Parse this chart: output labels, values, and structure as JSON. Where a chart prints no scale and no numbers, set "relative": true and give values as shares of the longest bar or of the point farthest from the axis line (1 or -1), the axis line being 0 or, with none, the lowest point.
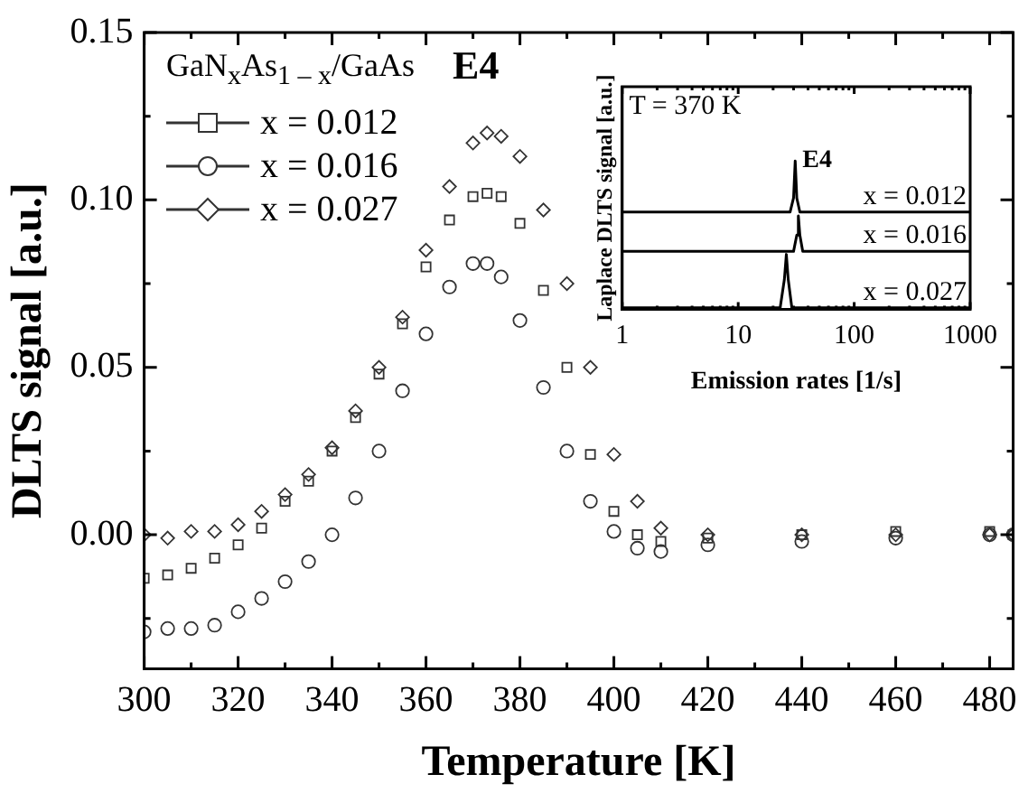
{
  "chart_data": [
    {
      "type": "scatter",
      "xlabel": "Temperature [K]",
      "ylabel": "DLTS signal [a.u.]",
      "legend_title": "GaN$_{x}$As$_{1 – x}$/GaAs",
      "legend": "top left",
      "grid": false,
      "x": [
        300,
        305,
        310,
        315,
        320,
        325,
        330,
        335,
        340,
        345,
        350,
        355,
        360,
        365,
        370,
        373,
        376,
        380,
        385,
        390,
        395,
        400,
        405,
        410,
        420,
        440,
        460,
        480,
        485
      ],
      "series": [
        {
          "name": "x = 0.012",
          "color": "#333333",
          "marker": "square",
          "values": [
            -0.013,
            -0.012,
            -0.01,
            -0.007,
            -0.003,
            0.002,
            0.01,
            0.016,
            0.025,
            0.035,
            0.048,
            0.063,
            0.08,
            0.094,
            0.101,
            0.102,
            0.101,
            0.093,
            0.073,
            0.05,
            0.024,
            0.007,
            0,
            -0.002,
            -0.001,
            0,
            0.001,
            0.001,
            0
          ]
        },
        {
          "name": "x = 0.016",
          "color": "#333333",
          "marker": "circle",
          "values": [
            -0.029,
            -0.028,
            -0.028,
            -0.027,
            -0.023,
            -0.019,
            -0.014,
            -0.008,
            0,
            0.011,
            0.025,
            0.043,
            0.06,
            0.074,
            0.081,
            0.081,
            0.077,
            0.064,
            0.044,
            0.025,
            0.01,
            0.001,
            -0.004,
            -0.005,
            -0.003,
            -0.002,
            -0.001,
            0,
            0
          ]
        },
        {
          "name": "x = 0.027",
          "color": "#333333",
          "marker": "diamond",
          "values": [
            0,
            -0.001,
            0.001,
            0.001,
            0.003,
            0.007,
            0.012,
            0.018,
            0.026,
            0.037,
            0.05,
            0.065,
            0.085,
            0.104,
            0.117,
            0.12,
            0.119,
            0.113,
            0.097,
            0.075,
            0.05,
            0.024,
            0.01,
            0.002,
            0,
            0,
            0,
            0,
            0
          ]
        }
      ],
      "xlim": [
        300,
        485
      ],
      "xticks": [
        300,
        {
          "value": 310,
          "label": null
        },
        320,
        {
          "value": 330,
          "label": null
        },
        340,
        {
          "value": 350,
          "label": null
        },
        360,
        {
          "value": 370,
          "label": null
        },
        380,
        {
          "value": 390,
          "label": null
        },
        400,
        {
          "value": 410,
          "label": null
        },
        420,
        {
          "value": 430,
          "label": null
        },
        440,
        {
          "value": 450,
          "label": null
        },
        460,
        {
          "value": 470,
          "label": null
        },
        480
      ],
      "ylim": [
        -0.04,
        0.15
      ],
      "yticks": [
        {
          "value": -0.025,
          "label": null
        },
        {
          "value": 0,
          "label": "0.00"
        },
        {
          "value": 0.025,
          "label": null
        },
        0.05,
        {
          "value": 0.075,
          "label": null
        },
        {
          "value": 0.1,
          "label": "0.10"
        },
        {
          "value": 0.125,
          "label": null
        },
        0.15
      ],
      "annotations": [
        "E4"
      ]
    },
    {
      "type": "line",
      "xlabel": "Emission rates [1/s]",
      "ylabel": "Laplace DLTS signal [a.u.]",
      "relative": true,
      "log": "x",
      "grid": false,
      "legend": false,
      "marker": "none",
      "tick_labels": "x",
      "series": [
        {
          "name": "x = 0.012",
          "color": "#000000",
          "x": [
            1,
            28,
            30,
            31,
            32,
            34,
            1000
          ],
          "values": [
            0.655,
            0.655,
            0.75,
            1,
            0.75,
            0.655,
            0.655
          ]
        },
        {
          "name": "x = 0.016",
          "color": "#000000",
          "x": [
            1,
            30,
            32,
            33,
            34,
            36,
            1000
          ],
          "values": [
            0.39,
            0.39,
            0.5,
            0.63,
            0.5,
            0.39,
            0.39
          ]
        },
        {
          "name": "x = 0.027",
          "color": "#000000",
          "x": [
            1,
            23,
            25,
            26,
            27,
            29,
            1000
          ],
          "values": [
            0.01,
            0.01,
            0.2,
            0.37,
            0.2,
            0.01,
            0.01
          ]
        }
      ],
      "xlim": [
        1,
        1000
      ],
      "xticks": [
        1,
        {
          "value": 2,
          "label": null
        },
        {
          "value": 3,
          "label": null
        },
        {
          "value": 4,
          "label": null
        },
        {
          "value": 5,
          "label": null
        },
        {
          "value": 6,
          "label": null
        },
        {
          "value": 7,
          "label": null
        },
        {
          "value": 8,
          "label": null
        },
        {
          "value": 9,
          "label": null
        },
        10,
        {
          "value": 20,
          "label": null
        },
        {
          "value": 30,
          "label": null
        },
        {
          "value": 40,
          "label": null
        },
        {
          "value": 50,
          "label": null
        },
        {
          "value": 60,
          "label": null
        },
        {
          "value": 70,
          "label": null
        },
        {
          "value": 80,
          "label": null
        },
        {
          "value": 90,
          "label": null
        },
        100,
        {
          "value": 200,
          "label": null
        },
        {
          "value": 300,
          "label": null
        },
        {
          "value": 400,
          "label": null
        },
        {
          "value": 500,
          "label": null
        },
        {
          "value": 600,
          "label": null
        },
        {
          "value": 700,
          "label": null
        },
        {
          "value": 800,
          "label": null
        },
        {
          "value": 900,
          "label": null
        },
        1000
      ],
      "annotations": [
        "T = 370 K",
        {
          "text": "E4",
          "x": 31,
          "y": 1
        }
      ]
    }
  ]
}
